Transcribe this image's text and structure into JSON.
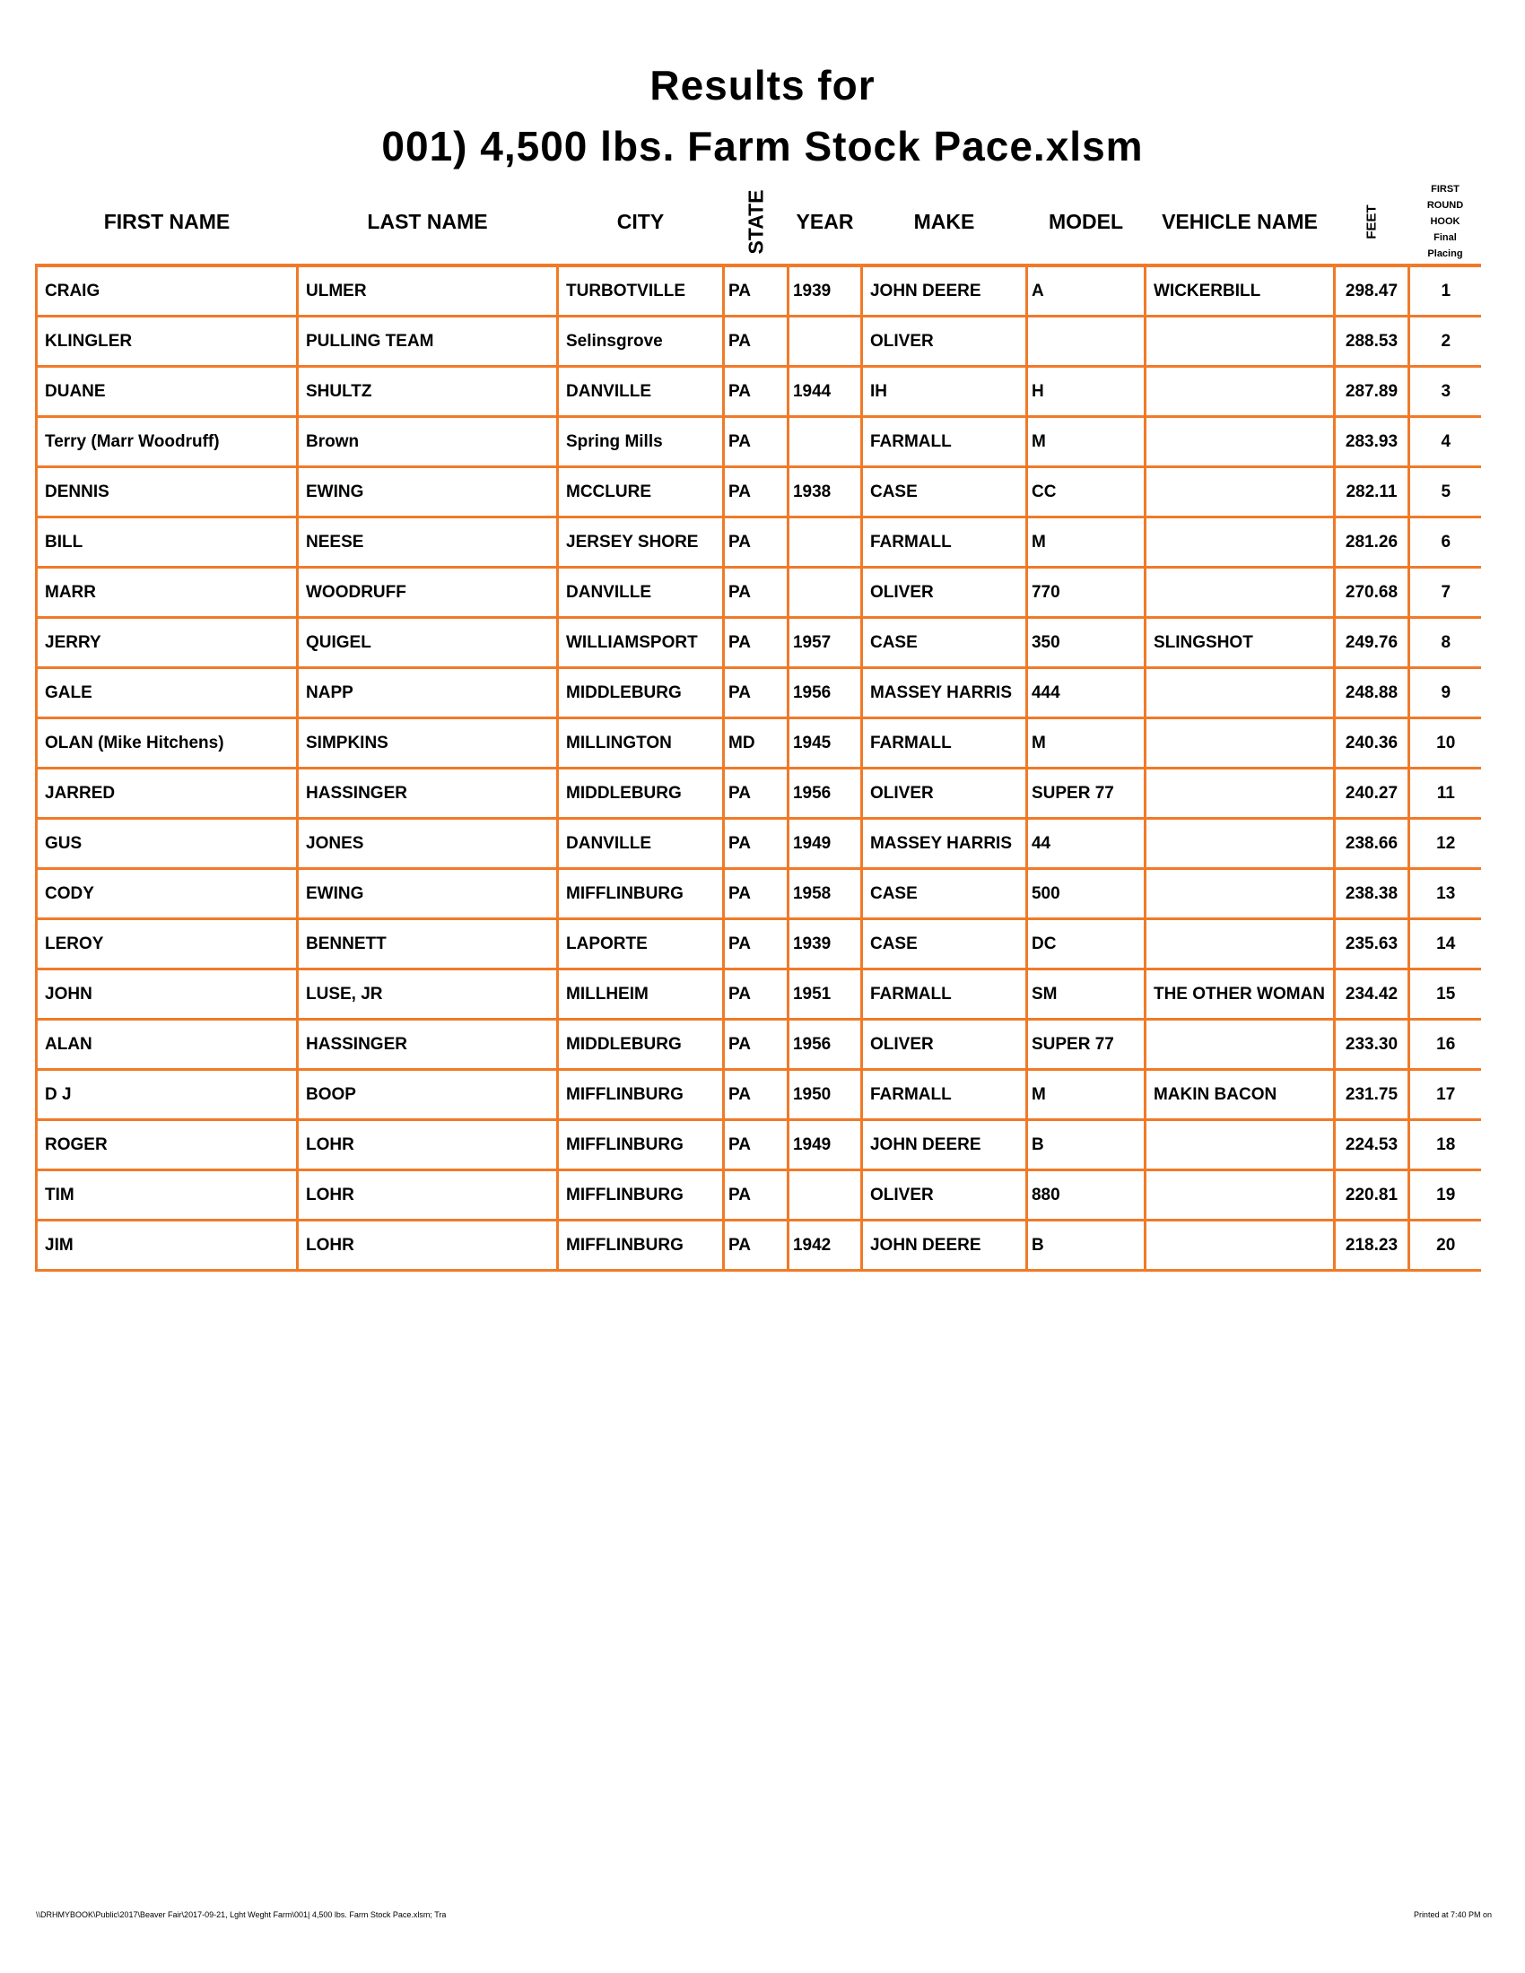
{
  "title_line1": "Results for",
  "title_line2": "001) 4,500 lbs. Farm Stock Pace.xlsm",
  "columns": {
    "first": "FIRST NAME",
    "last": "LAST NAME",
    "city": "CITY",
    "state": "STATE",
    "year": "YEAR",
    "make": "MAKE",
    "model": "MODEL",
    "vehicle": "VEHICLE NAME",
    "feet": "FEET",
    "placing": [
      "FIRST",
      "ROUND",
      "HOOK",
      "Final",
      "Placing"
    ]
  },
  "rows": [
    [
      "CRAIG",
      "ULMER",
      "TURBOTVILLE",
      "PA",
      "1939",
      "JOHN DEERE",
      "A",
      "WICKERBILL",
      "298.47",
      "1"
    ],
    [
      "KLINGLER",
      "PULLING TEAM",
      "Selinsgrove",
      "PA",
      "",
      "OLIVER",
      "",
      "",
      "288.53",
      "2"
    ],
    [
      "DUANE",
      "SHULTZ",
      "DANVILLE",
      "PA",
      "1944",
      "IH",
      "H",
      "",
      "287.89",
      "3"
    ],
    [
      "Terry (Marr Woodruff)",
      "Brown",
      "Spring  Mills",
      "PA",
      "",
      "FARMALL",
      "M",
      "",
      "283.93",
      "4"
    ],
    [
      "DENNIS",
      "EWING",
      "MCCLURE",
      "PA",
      "1938",
      "CASE",
      "CC",
      "",
      "282.11",
      "5"
    ],
    [
      "BILL",
      "NEESE",
      "JERSEY SHORE",
      "PA",
      "",
      "FARMALL",
      "M",
      "",
      "281.26",
      "6"
    ],
    [
      "MARR",
      "WOODRUFF",
      "DANVILLE",
      "PA",
      "",
      "OLIVER",
      "770",
      "",
      "270.68",
      "7"
    ],
    [
      "JERRY",
      "QUIGEL",
      "WILLIAMSPORT",
      "PA",
      "1957",
      "CASE",
      "350",
      "SLINGSHOT",
      "249.76",
      "8"
    ],
    [
      "GALE",
      "NAPP",
      "MIDDLEBURG",
      "PA",
      "1956",
      "MASSEY HARRIS",
      "444",
      "",
      "248.88",
      "9"
    ],
    [
      "OLAN (Mike Hitchens)",
      "SIMPKINS",
      "MILLINGTON",
      "MD",
      "1945",
      "FARMALL",
      "M",
      "",
      "240.36",
      "10"
    ],
    [
      "JARRED",
      "HASSINGER",
      "MIDDLEBURG",
      "PA",
      "1956",
      "OLIVER",
      "SUPER 77",
      "",
      "240.27",
      "11"
    ],
    [
      "GUS",
      "JONES",
      "DANVILLE",
      "PA",
      "1949",
      "MASSEY HARRIS",
      "44",
      "",
      "238.66",
      "12"
    ],
    [
      "CODY",
      "EWING",
      "MIFFLINBURG",
      "PA",
      "1958",
      "CASE",
      "500",
      "",
      "238.38",
      "13"
    ],
    [
      "LEROY",
      "BENNETT",
      "LAPORTE",
      "PA",
      "1939",
      "CASE",
      "DC",
      "",
      "235.63",
      "14"
    ],
    [
      "JOHN",
      "LUSE, JR",
      "MILLHEIM",
      "PA",
      "1951",
      "FARMALL",
      "SM",
      "THE OTHER WOMAN",
      "234.42",
      "15"
    ],
    [
      "ALAN",
      "HASSINGER",
      "MIDDLEBURG",
      "PA",
      "1956",
      "OLIVER",
      "SUPER 77",
      "",
      "233.30",
      "16"
    ],
    [
      "D J",
      "BOOP",
      "MIFFLINBURG",
      "PA",
      "1950",
      "FARMALL",
      "M",
      "MAKIN BACON",
      "231.75",
      "17"
    ],
    [
      "ROGER",
      "LOHR",
      "MIFFLINBURG",
      "PA",
      "1949",
      "JOHN DEERE",
      "B",
      "",
      "224.53",
      "18"
    ],
    [
      "TIM",
      "LOHR",
      "MIFFLINBURG",
      "PA",
      "",
      "OLIVER",
      "880",
      "",
      "220.81",
      "19"
    ],
    [
      "JIM",
      "LOHR",
      "MIFFLINBURG",
      "PA",
      "1942",
      "JOHN DEERE",
      "B",
      "",
      "218.23",
      "20"
    ]
  ],
  "footer_left": "\\\\DRHMYBOOK\\Public\\2017\\Beaver Fair\\2017-09-21, Lght Weght Farm\\001| 4,500 lbs. Farm Stock Pace.xlsm;  Tra",
  "footer_right": "Printed at 7:40 PM on",
  "colors": {
    "grid": "#f07a28"
  }
}
